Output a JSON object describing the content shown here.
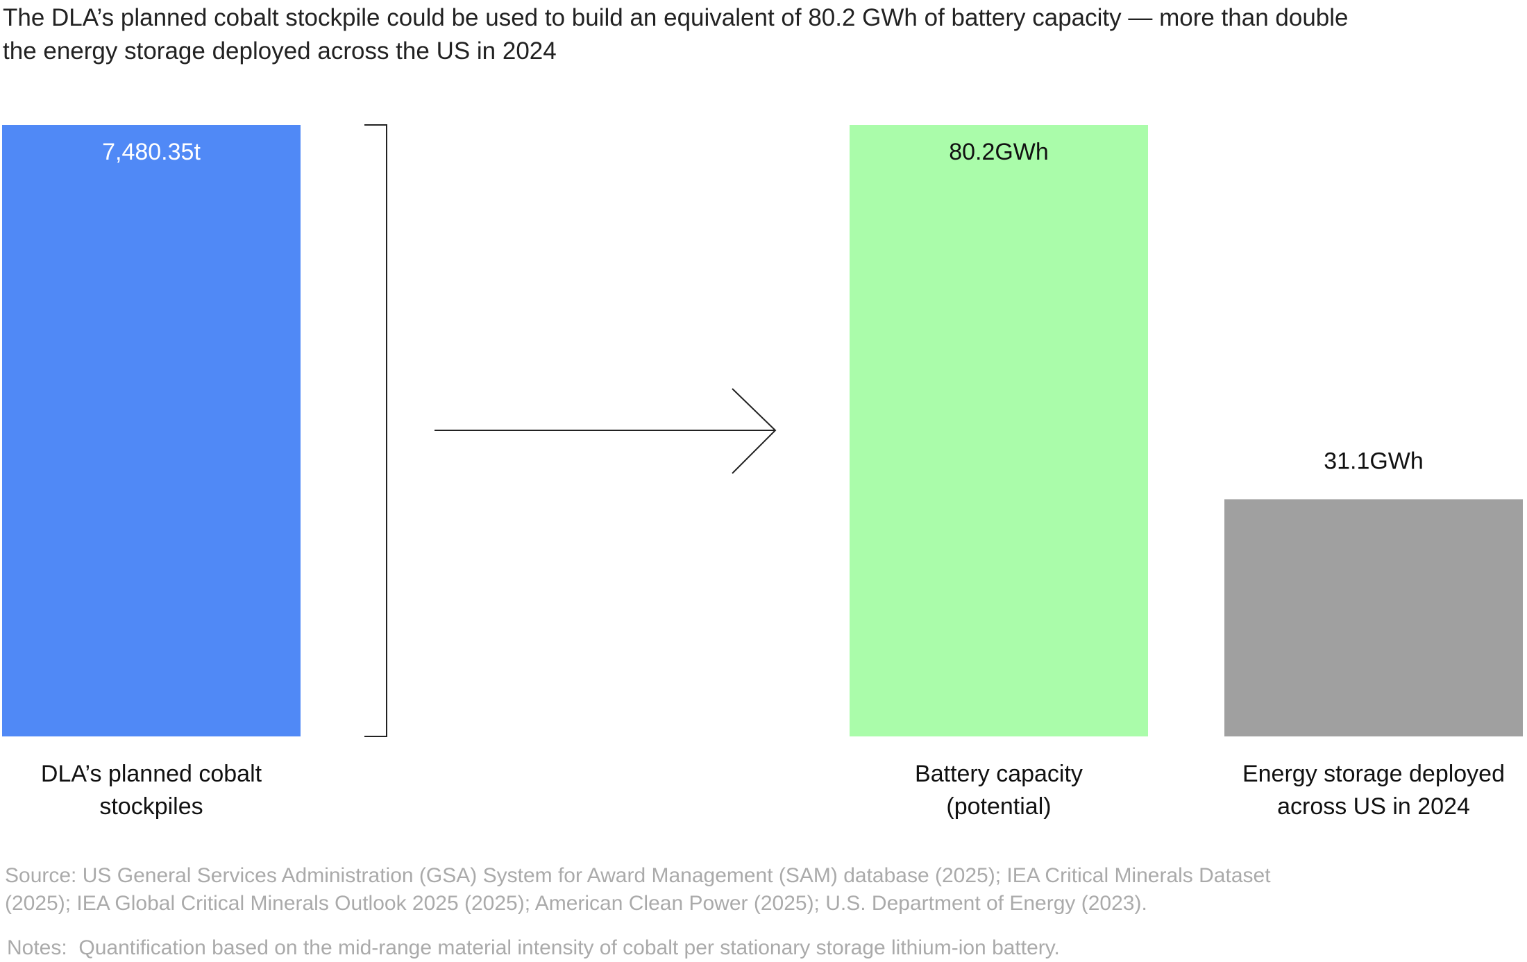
{
  "title": "The DLA’s planned cobalt stockpile could be used to build an equivalent of 80.2 GWh of battery capacity — more than double the energy storage deployed across the US in 2024",
  "chart_data": [
    {
      "type": "bar",
      "categories": [
        "DLA’s planned cobalt stockpiles"
      ],
      "values": [
        7480.35
      ],
      "value_labels": [
        "7,480.35t"
      ],
      "colors": [
        "#5089f6"
      ]
    },
    {
      "type": "bar",
      "categories": [
        "Battery capacity (potential)",
        "Energy storage deployed across US in 2024"
      ],
      "values": [
        80.2,
        31.1
      ],
      "value_labels": [
        "80.2GWh",
        "31.1GWh"
      ],
      "colors": [
        "#aafcaa",
        "#a0a0a0"
      ]
    }
  ],
  "source": "Source: US General Services Administration (GSA) System for Award Management (SAM) database (2025); IEA Critical Minerals Dataset (2025); IEA Global Critical Minerals Outlook 2025 (2025); American Clean Power (2025); U.S. Department of Energy (2023).",
  "notes": "Notes:  Quantification based on the mid-range material intensity of cobalt per stationary storage lithium-ion battery."
}
